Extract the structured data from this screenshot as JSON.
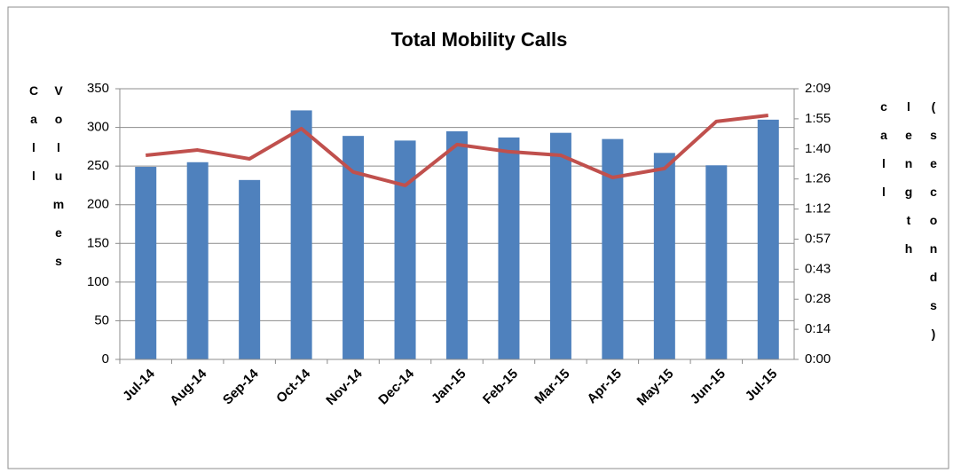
{
  "chart_data": {
    "type": "bar",
    "title": "Total Mobility Calls",
    "y_label": "Call Volumes",
    "y2_label": "call length (seconds)",
    "categories": [
      "Jul-14",
      "Aug-14",
      "Sep-14",
      "Oct-14",
      "Nov-14",
      "Dec-14",
      "Jan-15",
      "Feb-15",
      "Mar-15",
      "Apr-15",
      "May-15",
      "Jun-15",
      "Jul-15"
    ],
    "series": [
      {
        "name": "Call Volumes",
        "type": "bar",
        "color": "#4f81bd",
        "values": [
          249,
          255,
          232,
          322,
          289,
          283,
          295,
          287,
          293,
          285,
          267,
          251,
          310
        ]
      },
      {
        "name": "call length",
        "type": "line",
        "axis": "y2",
        "color": "#c0504d",
        "values": [
          97.3,
          99.8,
          95.6,
          110,
          89.3,
          82.9,
          102.4,
          99,
          97.3,
          86.7,
          91,
          113.4,
          116.3
        ]
      }
    ],
    "ylim": [
      0,
      350
    ],
    "yticks": [
      0,
      50,
      100,
      150,
      200,
      250,
      300,
      350
    ],
    "y2lim": [
      0,
      129
    ],
    "y2ticks": [
      {
        "value": 0,
        "label": "0:00"
      },
      {
        "value": 14.33,
        "label": "0:14"
      },
      {
        "value": 28.67,
        "label": "0:28"
      },
      {
        "value": 43,
        "label": "0:43"
      },
      {
        "value": 57.33,
        "label": "0:57"
      },
      {
        "value": 71.67,
        "label": "1:12"
      },
      {
        "value": 86,
        "label": "1:26"
      },
      {
        "value": 100.33,
        "label": "1:40"
      },
      {
        "value": 114.67,
        "label": "1:55"
      },
      {
        "value": 129,
        "label": "2:09"
      }
    ],
    "grid": true
  }
}
